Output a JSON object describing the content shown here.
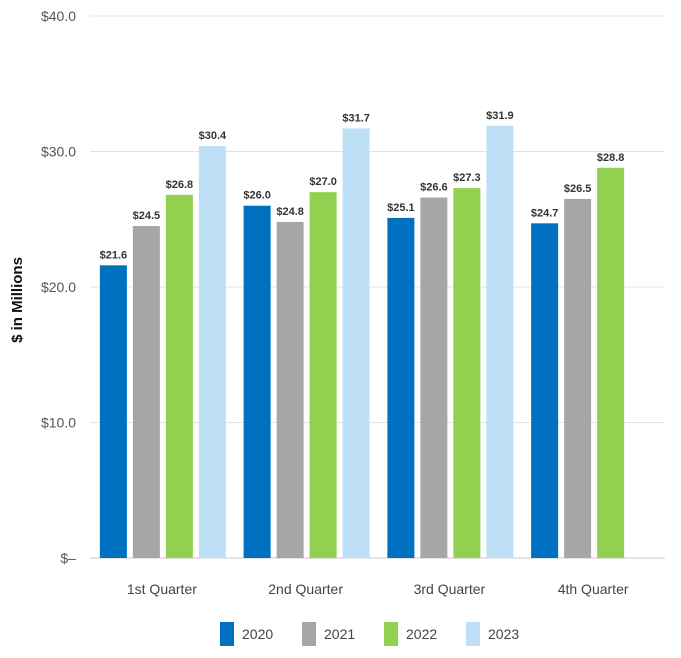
{
  "chart_data": {
    "type": "bar",
    "title": "",
    "xlabel": "",
    "ylabel": "$ in Millions",
    "ylim": [
      0,
      40
    ],
    "y_ticks": [
      {
        "value": 0,
        "label": "$–"
      },
      {
        "value": 10,
        "label": "$10.0"
      },
      {
        "value": 20,
        "label": "$20.0"
      },
      {
        "value": 30,
        "label": "$30.0"
      },
      {
        "value": 40,
        "label": "$40.0"
      }
    ],
    "grid": true,
    "legend_position": "bottom",
    "categories": [
      "1st Quarter",
      "2nd Quarter",
      "3rd Quarter",
      "4th Quarter"
    ],
    "series": [
      {
        "name": "2020",
        "color": "#0070c0",
        "values": [
          21.6,
          26.0,
          25.1,
          24.7
        ],
        "labels": [
          "$21.6",
          "$26.0",
          "$25.1",
          "$24.7"
        ]
      },
      {
        "name": "2021",
        "color": "#a6a6a6",
        "values": [
          24.5,
          24.8,
          26.6,
          26.5
        ],
        "labels": [
          "$24.5",
          "$24.8",
          "$26.6",
          "$26.5"
        ]
      },
      {
        "name": "2022",
        "color": "#92d050",
        "values": [
          26.8,
          27.0,
          27.3,
          28.8
        ],
        "labels": [
          "$26.8",
          "$27.0",
          "$27.3",
          "$28.8"
        ]
      },
      {
        "name": "2023",
        "color": "#bde0f7",
        "values": [
          30.4,
          31.7,
          31.9,
          null
        ],
        "labels": [
          "$30.4",
          "$31.7",
          "$31.9",
          ""
        ]
      }
    ]
  }
}
